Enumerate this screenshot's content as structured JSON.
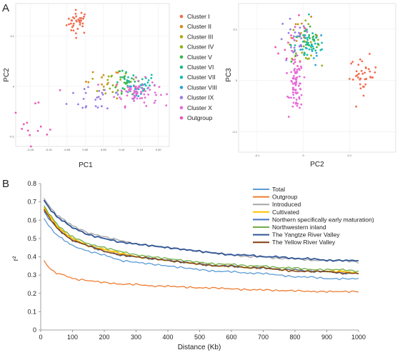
{
  "panels": {
    "a": "A",
    "b": "B"
  },
  "chart_data": [
    {
      "type": "scatter",
      "xlabel": "PC1",
      "ylabel": "PC2",
      "xlim": [
        -0.19,
        0.23
      ],
      "ylim": [
        -0.12,
        0.165
      ],
      "xticks": [
        "-0.15",
        "-0.10",
        "-0.05",
        "0.00",
        "0.05",
        "0.10",
        "0.15",
        "0.20"
      ],
      "xtick_values": [
        -0.15,
        -0.1,
        -0.05,
        0.0,
        0.05,
        0.1,
        0.15,
        0.2
      ],
      "yticks": [
        "-0.1",
        "0",
        "0.1"
      ],
      "ytick_values": [
        -0.1,
        0,
        0.1
      ],
      "grid": true,
      "legend_position": "right",
      "legend": [
        {
          "name": "Cluster I",
          "color": "#f16c4f"
        },
        {
          "name": "Cluster II",
          "color": "#d98a1a"
        },
        {
          "name": "Cluster III",
          "color": "#b8a312"
        },
        {
          "name": "Cluster IV",
          "color": "#8eb21a"
        },
        {
          "name": "Cluster V",
          "color": "#3ab54a"
        },
        {
          "name": "Cluster VI",
          "color": "#1cbb84"
        },
        {
          "name": "Cluster VII",
          "color": "#1bbcb8"
        },
        {
          "name": "Cluster VIII",
          "color": "#2ba3dc"
        },
        {
          "name": "Cluster IX",
          "color": "#9a7ce3"
        },
        {
          "name": "Cluster X",
          "color": "#e56bd6"
        },
        {
          "name": "Outgroup",
          "color": "#ee58b4"
        }
      ],
      "clusters": [
        {
          "name": "Cluster I",
          "n": 36,
          "center": [
            -0.02,
            0.128
          ],
          "spread": [
            0.025,
            0.02
          ]
        },
        {
          "name": "Cluster II",
          "n": 10,
          "center": [
            0.05,
            0.01
          ],
          "spread": [
            0.04,
            0.02
          ]
        },
        {
          "name": "Cluster III",
          "n": 12,
          "center": [
            0.07,
            0.0
          ],
          "spread": [
            0.04,
            0.02
          ]
        },
        {
          "name": "Cluster IV",
          "n": 14,
          "center": [
            0.09,
            0.01
          ],
          "spread": [
            0.04,
            0.02
          ]
        },
        {
          "name": "Cluster V",
          "n": 18,
          "center": [
            0.11,
            0.0
          ],
          "spread": [
            0.04,
            0.02
          ]
        },
        {
          "name": "Cluster VI",
          "n": 20,
          "center": [
            0.13,
            0.005
          ],
          "spread": [
            0.04,
            0.02
          ]
        },
        {
          "name": "Cluster VII",
          "n": 20,
          "center": [
            0.15,
            0.005
          ],
          "spread": [
            0.035,
            0.02
          ]
        },
        {
          "name": "Cluster VIII",
          "n": 10,
          "center": [
            0.13,
            -0.01
          ],
          "spread": [
            0.035,
            0.015
          ]
        },
        {
          "name": "Cluster IX",
          "n": 24,
          "center": [
            0.04,
            -0.02
          ],
          "spread": [
            0.07,
            0.03
          ]
        },
        {
          "name": "Cluster X",
          "n": 70,
          "center": [
            0.14,
            -0.012
          ],
          "spread": [
            0.05,
            0.022
          ]
        },
        {
          "name": "Outgroup",
          "n": 14,
          "center": [
            -0.13,
            -0.06
          ],
          "spread": [
            0.05,
            0.05
          ]
        }
      ]
    },
    {
      "type": "scatter",
      "xlabel": "PC2",
      "ylabel": "PC3",
      "xlim": [
        -0.14,
        0.2
      ],
      "ylim": [
        -0.14,
        0.15
      ],
      "xticks": [
        "-0.1",
        "0",
        "0.1"
      ],
      "xtick_values": [
        -0.1,
        0,
        0.1
      ],
      "yticks": [
        "-0.1",
        "0",
        "0.1"
      ],
      "ytick_values": [
        -0.1,
        0,
        0.1
      ],
      "grid": true,
      "clusters": [
        {
          "name": "Cluster I",
          "n": 36,
          "center": [
            0.13,
            0.01
          ],
          "spread": [
            0.025,
            0.03
          ]
        },
        {
          "name": "Cluster II",
          "n": 10,
          "center": [
            0.0,
            0.085
          ],
          "spread": [
            0.03,
            0.03
          ]
        },
        {
          "name": "Cluster III",
          "n": 12,
          "center": [
            0.0,
            0.075
          ],
          "spread": [
            0.03,
            0.03
          ]
        },
        {
          "name": "Cluster IV",
          "n": 14,
          "center": [
            0.0,
            0.075
          ],
          "spread": [
            0.03,
            0.03
          ]
        },
        {
          "name": "Cluster V",
          "n": 18,
          "center": [
            0.01,
            0.07
          ],
          "spread": [
            0.03,
            0.03
          ]
        },
        {
          "name": "Cluster VI",
          "n": 20,
          "center": [
            0.01,
            0.07
          ],
          "spread": [
            0.03,
            0.03
          ]
        },
        {
          "name": "Cluster VII",
          "n": 20,
          "center": [
            0.02,
            0.07
          ],
          "spread": [
            0.03,
            0.03
          ]
        },
        {
          "name": "Cluster VIII",
          "n": 10,
          "center": [
            0.01,
            0.06
          ],
          "spread": [
            0.03,
            0.03
          ]
        },
        {
          "name": "Cluster IX",
          "n": 24,
          "center": [
            -0.02,
            0.075
          ],
          "spread": [
            0.03,
            0.04
          ]
        },
        {
          "name": "Cluster X",
          "n": 70,
          "center": [
            -0.015,
            -0.01
          ],
          "spread": [
            0.012,
            0.04
          ]
        },
        {
          "name": "Outgroup",
          "n": 14,
          "center": [
            -0.02,
            0.07
          ],
          "spread": [
            0.03,
            0.04
          ]
        }
      ]
    },
    {
      "type": "line",
      "xlabel": "Distance (Kb)",
      "ylabel": "r²",
      "xlim": [
        0,
        1000
      ],
      "ylim": [
        0,
        0.8
      ],
      "xticks": [
        "0",
        "100",
        "200",
        "300",
        "400",
        "500",
        "600",
        "700",
        "800",
        "900",
        "1000"
      ],
      "xtick_values": [
        0,
        100,
        200,
        300,
        400,
        500,
        600,
        700,
        800,
        900,
        1000
      ],
      "yticks": [
        "0",
        "0.1",
        "0.2",
        "0.3",
        "0.4",
        "0.5",
        "0.6",
        "0.7",
        "0.8"
      ],
      "ytick_values": [
        0,
        0.1,
        0.2,
        0.3,
        0.4,
        0.5,
        0.6,
        0.7,
        0.8
      ],
      "grid": false,
      "legend_position": "top-right",
      "x": [
        10,
        25,
        50,
        75,
        100,
        150,
        200,
        250,
        300,
        350,
        400,
        450,
        500,
        550,
        600,
        650,
        700,
        750,
        800,
        850,
        900,
        950,
        1000
      ],
      "series": [
        {
          "name": "Total",
          "color": "#5b9bd5",
          "width": 1.3,
          "values": [
            0.61,
            0.57,
            0.52,
            0.49,
            0.46,
            0.43,
            0.41,
            0.38,
            0.37,
            0.36,
            0.35,
            0.34,
            0.33,
            0.32,
            0.32,
            0.31,
            0.31,
            0.3,
            0.29,
            0.29,
            0.28,
            0.28,
            0.28
          ]
        },
        {
          "name": "Outgroup",
          "color": "#ed7d31",
          "width": 1.3,
          "values": [
            0.38,
            0.34,
            0.31,
            0.3,
            0.28,
            0.27,
            0.26,
            0.25,
            0.25,
            0.24,
            0.24,
            0.235,
            0.23,
            0.23,
            0.225,
            0.22,
            0.22,
            0.215,
            0.215,
            0.21,
            0.21,
            0.21,
            0.21
          ]
        },
        {
          "name": "Introduced",
          "color": "#a5a5a5",
          "width": 1.3,
          "values": [
            0.72,
            0.68,
            0.63,
            0.6,
            0.57,
            0.53,
            0.51,
            0.49,
            0.47,
            0.46,
            0.45,
            0.44,
            0.43,
            0.42,
            0.41,
            0.4,
            0.4,
            0.39,
            0.39,
            0.38,
            0.38,
            0.38,
            0.37
          ]
        },
        {
          "name": "Cultivated",
          "color": "#ffc000",
          "width": 2.0,
          "values": [
            0.67,
            0.63,
            0.57,
            0.53,
            0.5,
            0.46,
            0.44,
            0.42,
            0.4,
            0.39,
            0.38,
            0.37,
            0.36,
            0.35,
            0.35,
            0.34,
            0.34,
            0.33,
            0.33,
            0.32,
            0.32,
            0.32,
            0.31
          ]
        },
        {
          "name": "Northern specifically early maturation)",
          "color": "#4472c4",
          "width": 1.3,
          "values": [
            0.65,
            0.61,
            0.56,
            0.52,
            0.49,
            0.46,
            0.43,
            0.41,
            0.4,
            0.39,
            0.38,
            0.37,
            0.36,
            0.35,
            0.35,
            0.34,
            0.34,
            0.33,
            0.33,
            0.32,
            0.32,
            0.31,
            0.31
          ]
        },
        {
          "name": "Northwestern inland",
          "color": "#70ad47",
          "width": 1.3,
          "values": [
            0.68,
            0.64,
            0.58,
            0.54,
            0.51,
            0.47,
            0.45,
            0.43,
            0.41,
            0.4,
            0.39,
            0.38,
            0.37,
            0.36,
            0.36,
            0.35,
            0.35,
            0.34,
            0.34,
            0.33,
            0.33,
            0.33,
            0.32
          ]
        },
        {
          "name": "The Yangtze River Valley",
          "color": "#2f5597",
          "width": 1.8,
          "values": [
            0.71,
            0.67,
            0.62,
            0.59,
            0.56,
            0.52,
            0.5,
            0.48,
            0.47,
            0.46,
            0.45,
            0.44,
            0.43,
            0.42,
            0.41,
            0.41,
            0.4,
            0.4,
            0.39,
            0.39,
            0.38,
            0.38,
            0.38
          ]
        },
        {
          "name": "The Yellow River Valley",
          "color": "#843c0c",
          "width": 1.3,
          "values": [
            0.66,
            0.62,
            0.56,
            0.52,
            0.49,
            0.46,
            0.43,
            0.41,
            0.4,
            0.39,
            0.38,
            0.37,
            0.36,
            0.35,
            0.35,
            0.34,
            0.34,
            0.33,
            0.32,
            0.32,
            0.32,
            0.31,
            0.31
          ]
        }
      ]
    }
  ]
}
